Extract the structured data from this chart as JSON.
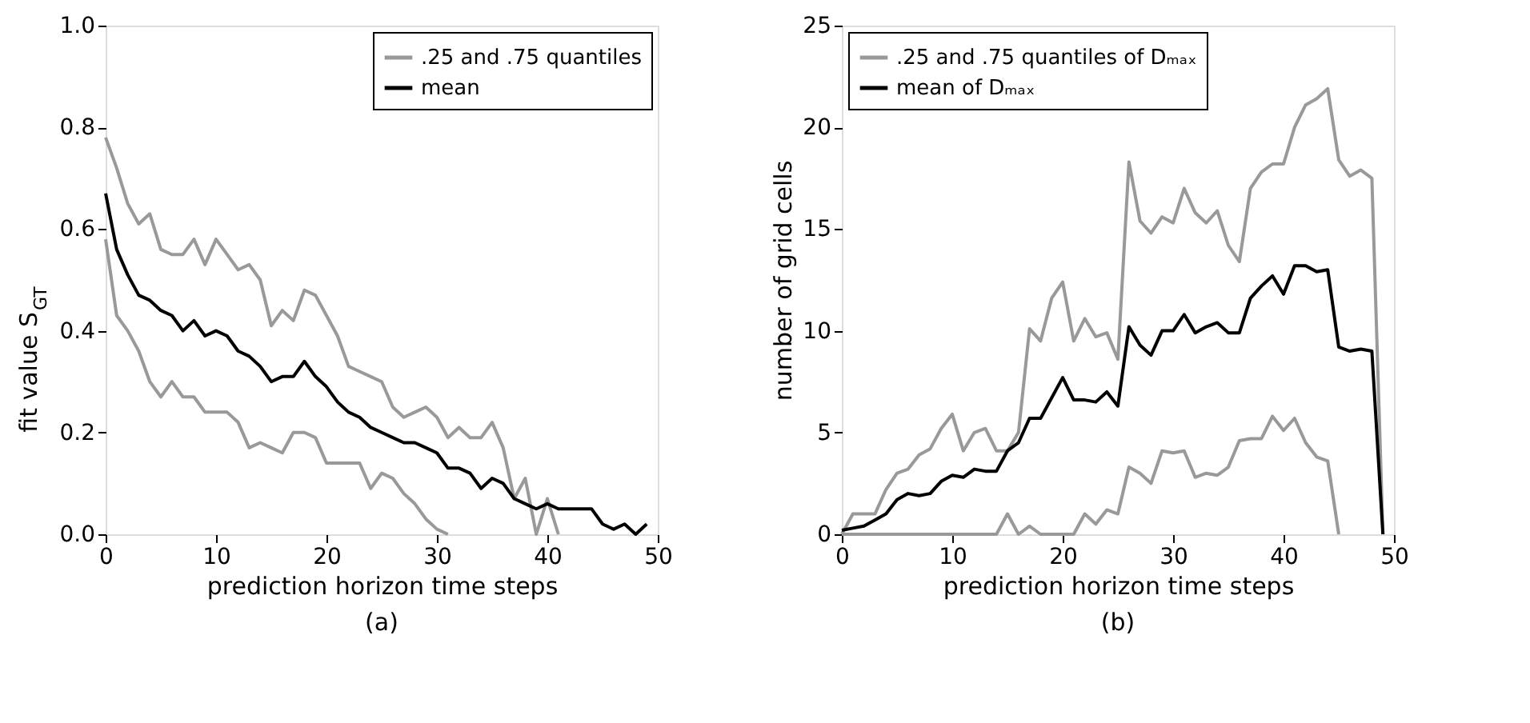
{
  "chart_data": [
    {
      "type": "line",
      "title": "(a)",
      "xlabel": "prediction horizon time steps",
      "ylabel": "fit value S$_{GT}$",
      "xlim": [
        0,
        50
      ],
      "xticks": [
        0,
        10,
        20,
        30,
        40,
        50
      ],
      "ylim": [
        0,
        1.0
      ],
      "yticks": [
        {
          "value": 0,
          "label": "0.0"
        },
        0.2,
        0.4,
        0.6,
        0.8,
        {
          "value": 1.0,
          "label": "1.0"
        }
      ],
      "legend": "top right",
      "grid": false,
      "x": [
        0,
        1,
        2,
        3,
        4,
        5,
        6,
        7,
        8,
        9,
        10,
        11,
        12,
        13,
        14,
        15,
        16,
        17,
        18,
        19,
        20,
        21,
        22,
        23,
        24,
        25,
        26,
        27,
        28,
        29,
        30,
        31,
        32,
        33,
        34,
        35,
        36,
        37,
        38,
        39,
        40,
        41,
        42,
        43,
        44,
        45,
        46,
        47,
        48,
        49
      ],
      "series": [
        {
          "name": ".25 and .75 quantiles",
          "color": "#999999",
          "values": [
            0.78,
            0.72,
            0.65,
            0.61,
            0.63,
            0.56,
            0.55,
            0.55,
            0.58,
            0.53,
            0.58,
            0.55,
            0.52,
            0.53,
            0.5,
            0.41,
            0.44,
            0.42,
            0.48,
            0.47,
            0.43,
            0.39,
            0.33,
            0.32,
            0.31,
            0.3,
            0.25,
            0.23,
            0.24,
            0.25,
            0.23,
            0.19,
            0.21,
            0.19,
            0.19,
            0.22,
            0.17,
            0.07,
            0.11,
            0.0,
            0.07,
            0.0,
            null,
            null,
            null,
            null,
            null,
            null,
            null,
            null
          ]
        },
        {
          "color": "#999999",
          "values": [
            0.58,
            0.43,
            0.4,
            0.36,
            0.3,
            0.27,
            0.3,
            0.27,
            0.27,
            0.24,
            0.24,
            0.24,
            0.22,
            0.17,
            0.18,
            0.17,
            0.16,
            0.2,
            0.2,
            0.19,
            0.14,
            0.14,
            0.14,
            0.14,
            0.09,
            0.12,
            0.11,
            0.08,
            0.06,
            0.03,
            0.01,
            0.0,
            null,
            null,
            null,
            null,
            null,
            null,
            null,
            null,
            null,
            null,
            null,
            null,
            null,
            null,
            null,
            null,
            null,
            null
          ]
        },
        {
          "name": "mean",
          "color": "#000000",
          "values": [
            0.67,
            0.56,
            0.51,
            0.47,
            0.46,
            0.44,
            0.43,
            0.4,
            0.42,
            0.39,
            0.4,
            0.39,
            0.36,
            0.35,
            0.33,
            0.3,
            0.31,
            0.31,
            0.34,
            0.31,
            0.29,
            0.26,
            0.24,
            0.23,
            0.21,
            0.2,
            0.19,
            0.18,
            0.18,
            0.17,
            0.16,
            0.13,
            0.13,
            0.12,
            0.09,
            0.11,
            0.1,
            0.07,
            0.06,
            0.05,
            0.06,
            0.05,
            0.05,
            0.05,
            0.05,
            0.02,
            0.01,
            0.02,
            0.0,
            0.02
          ]
        }
      ]
    },
    {
      "type": "line",
      "title": "(b)",
      "xlabel": "prediction horizon time steps",
      "ylabel": "number of grid cells",
      "xlim": [
        0,
        50
      ],
      "xticks": [
        0,
        10,
        20,
        30,
        40,
        50
      ],
      "ylim": [
        0,
        25
      ],
      "yticks": [
        0,
        5,
        10,
        15,
        20,
        25
      ],
      "legend": "top left",
      "grid": false,
      "x": [
        0,
        1,
        2,
        3,
        4,
        5,
        6,
        7,
        8,
        9,
        10,
        11,
        12,
        13,
        14,
        15,
        16,
        17,
        18,
        19,
        20,
        21,
        22,
        23,
        24,
        25,
        26,
        27,
        28,
        29,
        30,
        31,
        32,
        33,
        34,
        35,
        36,
        37,
        38,
        39,
        40,
        41,
        42,
        43,
        44,
        45,
        46,
        47,
        48,
        49
      ],
      "series": [
        {
          "name": ".25 and .75 quantiles of Dₘₐₓ",
          "color": "#999999",
          "values": [
            0,
            1.0,
            1.0,
            1.0,
            2.2,
            3.0,
            3.2,
            3.9,
            4.2,
            5.2,
            5.9,
            4.1,
            5.0,
            5.2,
            4.1,
            4.1,
            5.0,
            10.1,
            9.5,
            11.6,
            12.4,
            9.5,
            10.6,
            9.7,
            9.9,
            8.6,
            18.3,
            15.4,
            14.8,
            15.6,
            15.3,
            17.0,
            15.8,
            15.3,
            15.9,
            14.2,
            13.4,
            17.0,
            17.8,
            18.2,
            18.2,
            20.0,
            21.1,
            21.4,
            21.9,
            18.4,
            17.6,
            17.9,
            17.5,
            0
          ]
        },
        {
          "color": "#999999",
          "values": [
            0,
            0,
            0,
            0,
            0,
            0,
            0,
            0,
            0,
            0,
            0,
            0,
            0,
            0,
            0,
            1.0,
            0,
            0.4,
            0,
            0,
            0,
            0,
            1.0,
            0.5,
            1.2,
            1.0,
            3.3,
            3.0,
            2.5,
            4.1,
            4.0,
            4.1,
            2.8,
            3.0,
            2.9,
            3.3,
            4.6,
            4.7,
            4.7,
            5.8,
            5.1,
            5.7,
            4.5,
            3.8,
            3.6,
            0,
            null,
            null,
            null,
            null
          ]
        },
        {
          "name": "mean of Dₘₐₓ",
          "color": "#000000",
          "values": [
            0.2,
            0.3,
            0.4,
            0.7,
            1.0,
            1.7,
            2.0,
            1.9,
            2.0,
            2.6,
            2.9,
            2.8,
            3.2,
            3.1,
            3.1,
            4.1,
            4.5,
            5.7,
            5.7,
            6.7,
            7.7,
            6.6,
            6.6,
            6.5,
            7.0,
            6.3,
            10.2,
            9.3,
            8.8,
            10.0,
            10.0,
            10.8,
            9.9,
            10.2,
            10.4,
            9.9,
            9.9,
            11.6,
            12.2,
            12.7,
            11.8,
            13.2,
            13.2,
            12.9,
            13.0,
            9.2,
            9.0,
            9.1,
            9.0,
            0
          ]
        }
      ]
    }
  ]
}
